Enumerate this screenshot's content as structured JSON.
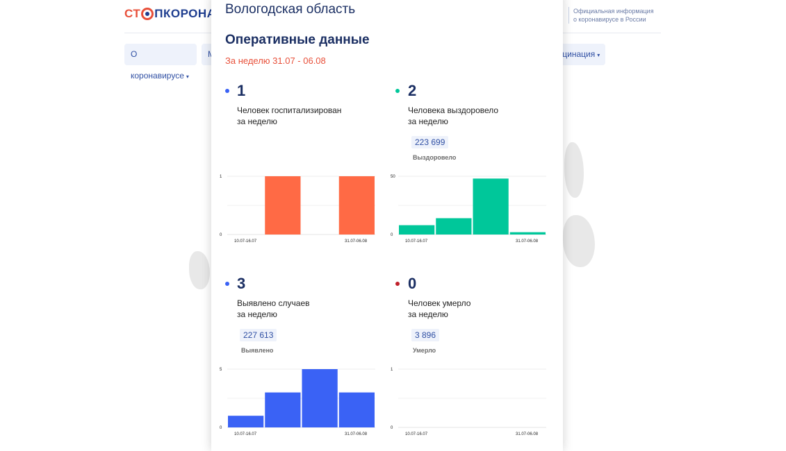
{
  "site": {
    "logo_a": "СТ",
    "logo_b": "ПКОРОНАВИ",
    "official_line1": "Официальная информация",
    "official_line2": "о коронавирусе в России",
    "nav": [
      {
        "label": "О коронавирусе",
        "caret": "▾"
      },
      {
        "label": "М",
        "caret": ""
      },
      {
        "label": "кцинация",
        "caret": "▾"
      }
    ]
  },
  "popup": {
    "region": "Вологодская область",
    "section_title": "Оперативные данные",
    "period": "За неделю 31.07 - 06.08"
  },
  "colors": {
    "hospitalized": "#ff6a45",
    "recovered": "#00c79a",
    "cases": "#3a62f5",
    "deaths": "#c0202a",
    "title": "#1b2f63"
  },
  "metrics": {
    "hospitalized": {
      "value": "1",
      "line1": "Человек госпитализирован",
      "line2": "за неделю"
    },
    "recovered": {
      "value": "2",
      "line1": "Человека выздоровело",
      "line2": "за неделю",
      "total": "223 699",
      "total_caption": "Выздоровело"
    },
    "cases": {
      "value": "3",
      "line1": "Выявлено случаев",
      "line2": "за неделю",
      "total": "227 613",
      "total_caption": "Выявлено"
    },
    "deaths": {
      "value": "0",
      "line1": "Человек умерло",
      "line2": "за неделю",
      "total": "3 896",
      "total_caption": "Умерло"
    }
  },
  "chart_data": [
    {
      "type": "bar",
      "series": [
        {
          "name": "Человек госпитализирован",
          "values": [
            0,
            1,
            0,
            1
          ]
        }
      ],
      "x_first": "10.07-16.07",
      "x_last": "31.07-06.08",
      "ylim": [
        0,
        1
      ],
      "yticks": [
        "0",
        "1"
      ],
      "color": "#ff6a45"
    },
    {
      "type": "bar",
      "series": [
        {
          "name": "Человека выздоровело",
          "values": [
            8,
            14,
            48,
            2
          ]
        }
      ],
      "x_first": "10.07-16.07",
      "x_last": "31.07-06.08",
      "ylim": [
        0,
        50
      ],
      "yticks": [
        "0",
        "50"
      ],
      "color": "#00c79a"
    },
    {
      "type": "bar",
      "series": [
        {
          "name": "Выявлено случаев",
          "values": [
            1,
            3,
            5,
            3
          ]
        }
      ],
      "x_first": "10.07-16.07",
      "x_last": "31.07-06.08",
      "ylim": [
        0,
        5
      ],
      "yticks": [
        "0",
        "5"
      ],
      "color": "#3a62f5"
    },
    {
      "type": "bar",
      "series": [
        {
          "name": "Человек умерло",
          "values": [
            0,
            0,
            0,
            0
          ]
        }
      ],
      "x_first": "10.07-16.07",
      "x_last": "31.07-06.08",
      "ylim": [
        0,
        1
      ],
      "yticks": [
        "0",
        "1"
      ],
      "color": "#c0202a"
    }
  ]
}
